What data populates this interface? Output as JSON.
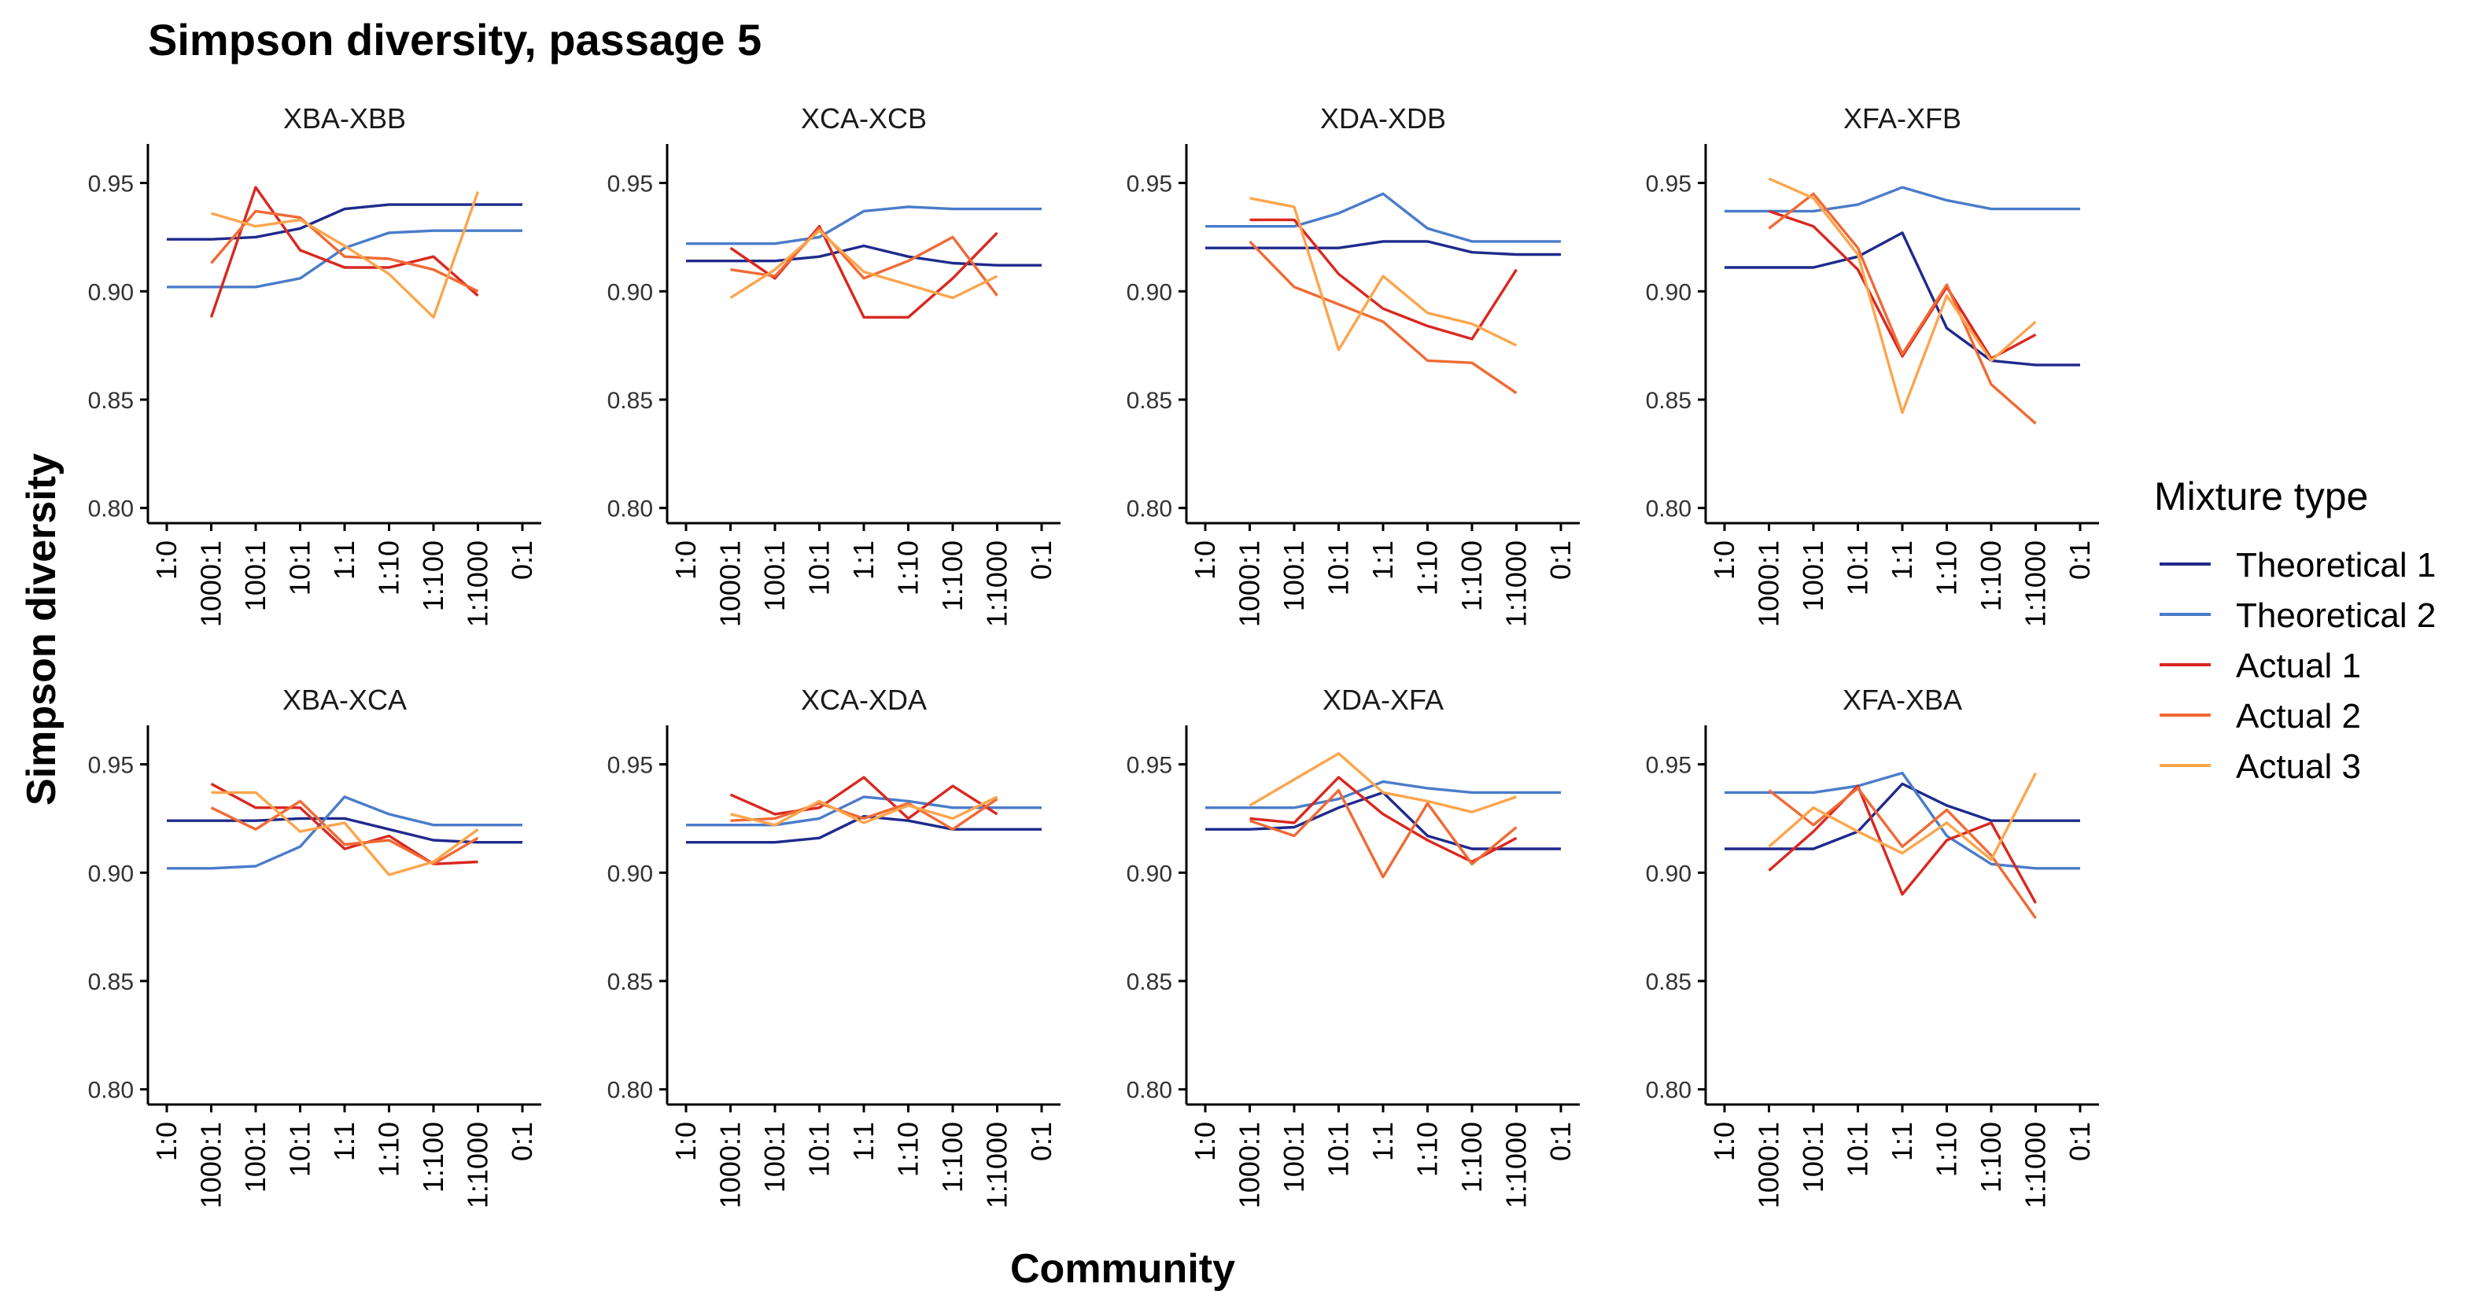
{
  "chart_data": {
    "type": "line",
    "title": "Simpson diversity, passage 5",
    "xlabel": "Community",
    "ylabel": "Simpson diversity",
    "categories": [
      "1:0",
      "1000:1",
      "100:1",
      "10:1",
      "1:1",
      "1:10",
      "1:100",
      "1:1000",
      "0:1"
    ],
    "ylim": [
      0.793,
      0.968
    ],
    "yticks": [
      0.8,
      0.85,
      0.9,
      0.95
    ],
    "ytick_labels": [
      "0.80",
      "0.85",
      "0.90",
      "0.95"
    ],
    "grid": false,
    "legend": {
      "title": "Mixture type",
      "placement": "right",
      "entries": [
        "Theoretical 1",
        "Theoretical 2",
        "Actual 1",
        "Actual 2",
        "Actual 3"
      ]
    },
    "series_colors": {
      "Theoretical 1": "#1f2a8c",
      "Theoretical 2": "#4a7cc9",
      "Actual 1": "#d92820",
      "Actual 2": "#f06a35",
      "Actual 3": "#fca54d"
    },
    "panels": [
      {
        "title": "XBA-XBB",
        "series": [
          {
            "name": "Theoretical 1",
            "values": [
              0.924,
              0.924,
              0.925,
              0.929,
              0.938,
              0.94,
              0.94,
              0.94,
              0.94
            ]
          },
          {
            "name": "Theoretical 2",
            "values": [
              0.902,
              0.902,
              0.902,
              0.906,
              0.92,
              0.927,
              0.928,
              0.928,
              0.928
            ]
          },
          {
            "name": "Actual 1",
            "values": [
              null,
              0.888,
              0.948,
              0.919,
              0.911,
              0.911,
              0.916,
              0.898,
              null
            ]
          },
          {
            "name": "Actual 2",
            "values": [
              null,
              0.913,
              0.937,
              0.934,
              0.916,
              0.915,
              0.91,
              0.9,
              null
            ]
          },
          {
            "name": "Actual 3",
            "values": [
              null,
              0.936,
              0.93,
              0.933,
              0.921,
              0.908,
              0.888,
              0.946,
              null
            ]
          }
        ]
      },
      {
        "title": "XCA-XCB",
        "series": [
          {
            "name": "Theoretical 1",
            "values": [
              0.914,
              0.914,
              0.914,
              0.916,
              0.921,
              0.916,
              0.913,
              0.912,
              0.912
            ]
          },
          {
            "name": "Theoretical 2",
            "values": [
              0.922,
              0.922,
              0.922,
              0.925,
              0.937,
              0.939,
              0.938,
              0.938,
              0.938
            ]
          },
          {
            "name": "Actual 1",
            "values": [
              null,
              0.92,
              0.906,
              0.93,
              0.888,
              0.888,
              0.906,
              0.927,
              null
            ]
          },
          {
            "name": "Actual 2",
            "values": [
              null,
              0.91,
              0.907,
              0.929,
              0.906,
              0.914,
              0.925,
              0.898,
              null
            ]
          },
          {
            "name": "Actual 3",
            "values": [
              null,
              0.897,
              0.91,
              0.928,
              0.909,
              0.903,
              0.897,
              0.907,
              null
            ]
          }
        ]
      },
      {
        "title": "XDA-XDB",
        "series": [
          {
            "name": "Theoretical 1",
            "values": [
              0.92,
              0.92,
              0.92,
              0.92,
              0.923,
              0.923,
              0.918,
              0.917,
              0.917
            ]
          },
          {
            "name": "Theoretical 2",
            "values": [
              0.93,
              0.93,
              0.93,
              0.936,
              0.945,
              0.929,
              0.923,
              0.923,
              0.923
            ]
          },
          {
            "name": "Actual 1",
            "values": [
              null,
              0.933,
              0.933,
              0.908,
              0.892,
              0.884,
              0.878,
              0.91,
              null
            ]
          },
          {
            "name": "Actual 2",
            "values": [
              null,
              0.923,
              0.902,
              0.894,
              0.886,
              0.868,
              0.867,
              0.853,
              null
            ]
          },
          {
            "name": "Actual 3",
            "values": [
              null,
              0.943,
              0.939,
              0.873,
              0.907,
              0.89,
              0.885,
              0.875,
              null
            ]
          }
        ]
      },
      {
        "title": "XFA-XFB",
        "series": [
          {
            "name": "Theoretical 1",
            "values": [
              0.911,
              0.911,
              0.911,
              0.916,
              0.927,
              0.883,
              0.868,
              0.866,
              0.866
            ]
          },
          {
            "name": "Theoretical 2",
            "values": [
              0.937,
              0.937,
              0.937,
              0.94,
              0.948,
              0.942,
              0.938,
              0.938,
              0.938
            ]
          },
          {
            "name": "Actual 1",
            "values": [
              null,
              0.937,
              0.93,
              0.91,
              0.87,
              0.902,
              0.869,
              0.88,
              null
            ]
          },
          {
            "name": "Actual 2",
            "values": [
              null,
              0.929,
              0.945,
              0.92,
              0.871,
              0.903,
              0.857,
              0.839,
              null
            ]
          },
          {
            "name": "Actual 3",
            "values": [
              null,
              0.952,
              0.943,
              0.917,
              0.844,
              0.898,
              0.868,
              0.886,
              null
            ]
          }
        ]
      },
      {
        "title": "XBA-XCA",
        "series": [
          {
            "name": "Theoretical 1",
            "values": [
              0.924,
              0.924,
              0.924,
              0.925,
              0.925,
              0.92,
              0.915,
              0.914,
              0.914
            ]
          },
          {
            "name": "Theoretical 2",
            "values": [
              0.902,
              0.902,
              0.903,
              0.912,
              0.935,
              0.927,
              0.922,
              0.922,
              0.922
            ]
          },
          {
            "name": "Actual 1",
            "values": [
              null,
              0.941,
              0.93,
              0.93,
              0.911,
              0.917,
              0.904,
              0.905,
              null
            ]
          },
          {
            "name": "Actual 2",
            "values": [
              null,
              0.93,
              0.92,
              0.933,
              0.913,
              0.915,
              0.904,
              0.916,
              null
            ]
          },
          {
            "name": "Actual 3",
            "values": [
              null,
              0.937,
              0.937,
              0.919,
              0.923,
              0.899,
              0.905,
              0.92,
              null
            ]
          }
        ]
      },
      {
        "title": "XCA-XDA",
        "series": [
          {
            "name": "Theoretical 1",
            "values": [
              0.914,
              0.914,
              0.914,
              0.916,
              0.926,
              0.924,
              0.92,
              0.92,
              0.92
            ]
          },
          {
            "name": "Theoretical 2",
            "values": [
              0.922,
              0.922,
              0.922,
              0.925,
              0.935,
              0.933,
              0.93,
              0.93,
              0.93
            ]
          },
          {
            "name": "Actual 1",
            "values": [
              null,
              0.936,
              0.927,
              0.93,
              0.944,
              0.925,
              0.94,
              0.927,
              null
            ]
          },
          {
            "name": "Actual 2",
            "values": [
              null,
              0.924,
              0.925,
              0.932,
              0.925,
              0.932,
              0.92,
              0.934,
              null
            ]
          },
          {
            "name": "Actual 3",
            "values": [
              null,
              0.927,
              0.922,
              0.933,
              0.923,
              0.931,
              0.925,
              0.935,
              null
            ]
          }
        ]
      },
      {
        "title": "XDA-XFA",
        "series": [
          {
            "name": "Theoretical 1",
            "values": [
              0.92,
              0.92,
              0.921,
              0.93,
              0.937,
              0.917,
              0.911,
              0.911,
              0.911
            ]
          },
          {
            "name": "Theoretical 2",
            "values": [
              0.93,
              0.93,
              0.93,
              0.934,
              0.942,
              0.939,
              0.937,
              0.937,
              0.937
            ]
          },
          {
            "name": "Actual 1",
            "values": [
              null,
              0.925,
              0.923,
              0.944,
              0.927,
              0.915,
              0.905,
              0.916,
              null
            ]
          },
          {
            "name": "Actual 2",
            "values": [
              null,
              0.924,
              0.917,
              0.938,
              0.898,
              0.932,
              0.904,
              0.921,
              null
            ]
          },
          {
            "name": "Actual 3",
            "values": [
              null,
              0.931,
              0.943,
              0.955,
              0.937,
              0.933,
              0.928,
              0.935,
              null
            ]
          }
        ]
      },
      {
        "title": "XFA-XBA",
        "series": [
          {
            "name": "Theoretical 1",
            "values": [
              0.911,
              0.911,
              0.911,
              0.919,
              0.941,
              0.931,
              0.924,
              0.924,
              0.924
            ]
          },
          {
            "name": "Theoretical 2",
            "values": [
              0.937,
              0.937,
              0.937,
              0.94,
              0.946,
              0.917,
              0.904,
              0.902,
              0.902
            ]
          },
          {
            "name": "Actual 1",
            "values": [
              null,
              0.901,
              0.919,
              0.94,
              0.89,
              0.915,
              0.923,
              0.886,
              null
            ]
          },
          {
            "name": "Actual 2",
            "values": [
              null,
              0.938,
              0.922,
              0.939,
              0.912,
              0.929,
              0.908,
              0.879,
              null
            ]
          },
          {
            "name": "Actual 3",
            "values": [
              null,
              0.912,
              0.93,
              0.919,
              0.909,
              0.923,
              0.906,
              0.946,
              null
            ]
          }
        ]
      }
    ]
  }
}
